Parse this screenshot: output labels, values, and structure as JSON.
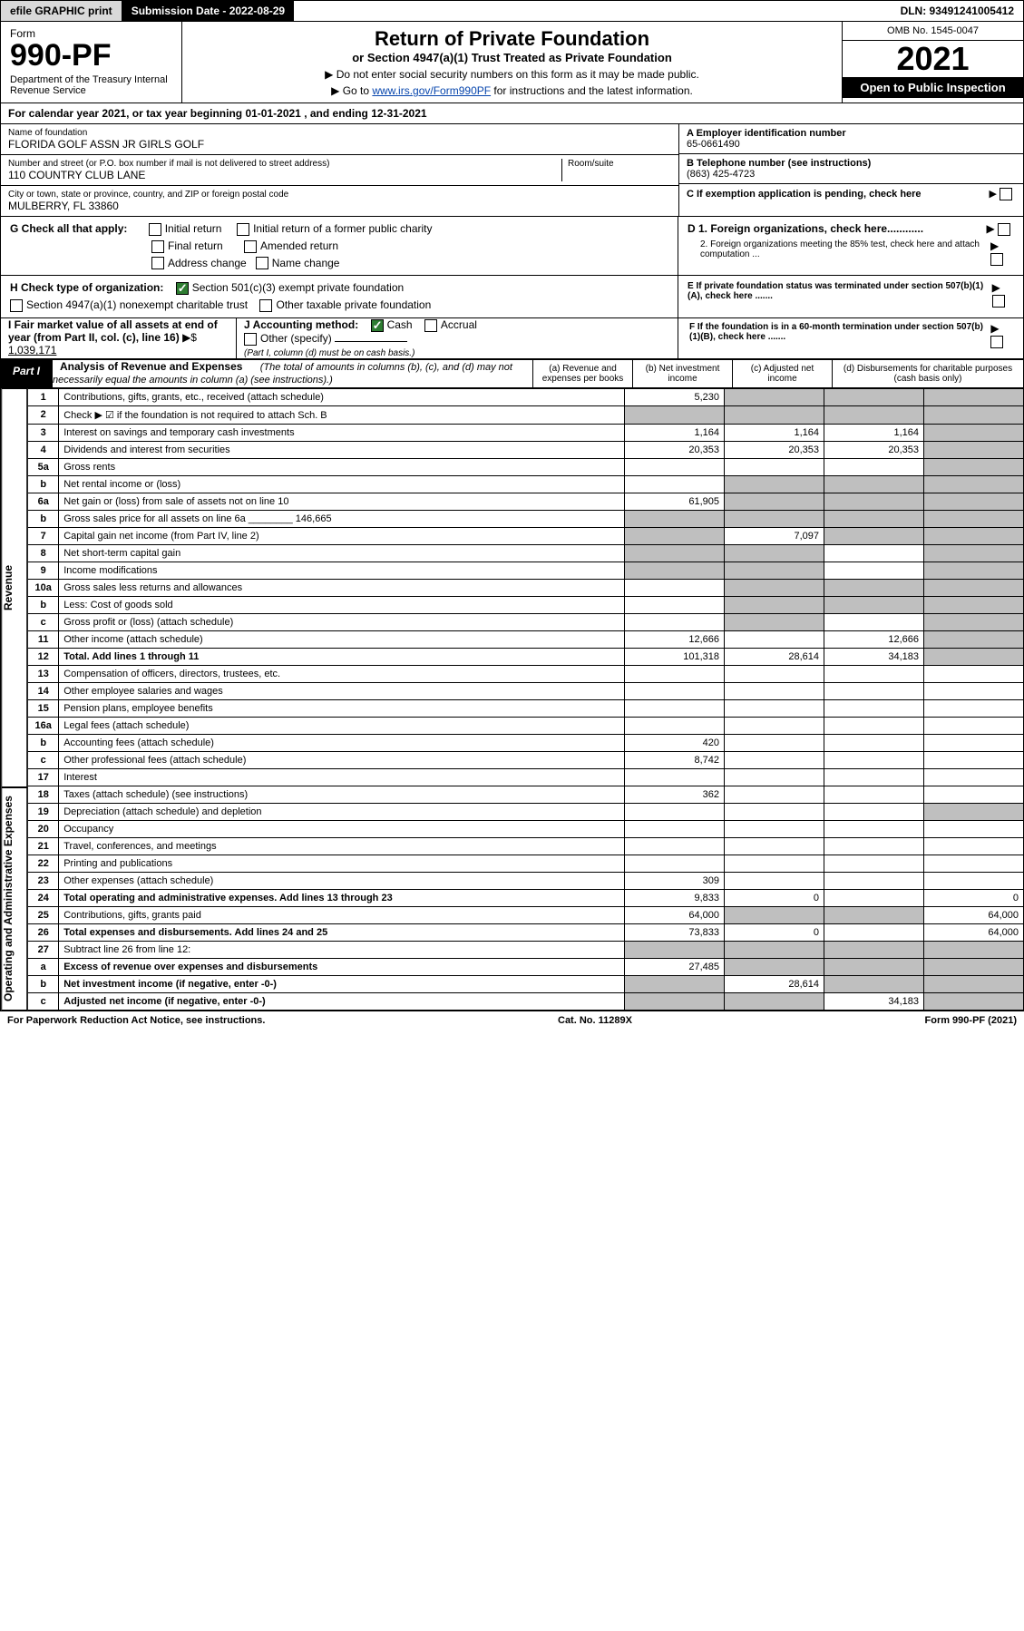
{
  "topbar": {
    "efile": "efile GRAPHIC print",
    "subdate_label": "Submission Date - 2022-08-29",
    "dln": "DLN: 93491241005412"
  },
  "header": {
    "form_label": "Form",
    "form_no": "990-PF",
    "dept": "Department of the Treasury\nInternal Revenue Service",
    "title1": "Return of Private Foundation",
    "title2": "or Section 4947(a)(1) Trust Treated as Private Foundation",
    "instr1": "▶ Do not enter social security numbers on this form as it may be made public.",
    "instr2_pre": "▶ Go to ",
    "instr2_link": "www.irs.gov/Form990PF",
    "instr2_post": " for instructions and the latest information.",
    "omb": "OMB No. 1545-0047",
    "taxyear": "2021",
    "open": "Open to Public Inspection"
  },
  "calendar": {
    "text_pre": "For calendar year 2021, or tax year beginning ",
    "begin": "01-01-2021",
    "text_mid": " , and ending ",
    "end": "12-31-2021"
  },
  "foundation": {
    "name_lbl": "Name of foundation",
    "name": "FLORIDA GOLF ASSN JR GIRLS GOLF",
    "addr_lbl": "Number and street (or P.O. box number if mail is not delivered to street address)",
    "addr": "110 COUNTRY CLUB LANE",
    "room_lbl": "Room/suite",
    "city_lbl": "City or town, state or province, country, and ZIP or foreign postal code",
    "city": "MULBERRY, FL  33860"
  },
  "right_ids": {
    "a_lbl": "A Employer identification number",
    "a_val": "65-0661490",
    "b_lbl": "B Telephone number (see instructions)",
    "b_val": "(863) 425-4723",
    "c_lbl": "C If exemption application is pending, check here",
    "d1": "D 1. Foreign organizations, check here............",
    "d2": "2. Foreign organizations meeting the 85% test, check here and attach computation ...",
    "e": "E  If private foundation status was terminated under section 507(b)(1)(A), check here .......",
    "f": "F  If the foundation is in a 60-month termination under section 507(b)(1)(B), check here ......."
  },
  "g": {
    "label": "G Check all that apply:",
    "opts": [
      "Initial return",
      "Final return",
      "Address change",
      "Initial return of a former public charity",
      "Amended return",
      "Name change"
    ]
  },
  "h": {
    "label": "H Check type of organization:",
    "opt1": "Section 501(c)(3) exempt private foundation",
    "opt2": "Section 4947(a)(1) nonexempt charitable trust",
    "opt3": "Other taxable private foundation"
  },
  "i": {
    "label": "I Fair market value of all assets at end of year (from Part II, col. (c), line 16)",
    "arrow": "▶$",
    "val": "1,039,171"
  },
  "j": {
    "label": "J Accounting method:",
    "cash": "Cash",
    "accrual": "Accrual",
    "other": "Other (specify)",
    "note": "(Part I, column (d) must be on cash basis.)"
  },
  "part1": {
    "tab": "Part I",
    "title": "Analysis of Revenue and Expenses",
    "sub": "(The total of amounts in columns (b), (c), and (d) may not necessarily equal the amounts in column (a) (see instructions).)",
    "col_a": "(a) Revenue and expenses per books",
    "col_b": "(b) Net investment income",
    "col_c": "(c) Adjusted net income",
    "col_d": "(d) Disbursements for charitable purposes (cash basis only)"
  },
  "side_labels": {
    "revenue": "Revenue",
    "expenses": "Operating and Administrative Expenses"
  },
  "rows": [
    {
      "sec": "rev",
      "n": "1",
      "desc": "Contributions, gifts, grants, etc., received (attach schedule)",
      "a": "5,230",
      "b": "",
      "c": "",
      "d": "",
      "shade_b": true,
      "shade_c": true,
      "shade_d": true
    },
    {
      "sec": "rev",
      "n": "2",
      "desc": "Check ▶ ☑ if the foundation is not required to attach Sch. B",
      "a": "",
      "b": "",
      "c": "",
      "d": "",
      "shade_a": true,
      "shade_b": true,
      "shade_c": true,
      "shade_d": true,
      "bold_not": true
    },
    {
      "sec": "rev",
      "n": "3",
      "desc": "Interest on savings and temporary cash investments",
      "a": "1,164",
      "b": "1,164",
      "c": "1,164",
      "d": "",
      "shade_d": true
    },
    {
      "sec": "rev",
      "n": "4",
      "desc": "Dividends and interest from securities",
      "a": "20,353",
      "b": "20,353",
      "c": "20,353",
      "d": "",
      "shade_d": true
    },
    {
      "sec": "rev",
      "n": "5a",
      "desc": "Gross rents",
      "a": "",
      "b": "",
      "c": "",
      "d": "",
      "shade_d": true
    },
    {
      "sec": "rev",
      "n": "b",
      "desc": "Net rental income or (loss)",
      "a": "",
      "b": "",
      "c": "",
      "d": "",
      "shade_b": true,
      "shade_c": true,
      "shade_d": true
    },
    {
      "sec": "rev",
      "n": "6a",
      "desc": "Net gain or (loss) from sale of assets not on line 10",
      "a": "61,905",
      "b": "",
      "c": "",
      "d": "",
      "shade_b": true,
      "shade_c": true,
      "shade_d": true
    },
    {
      "sec": "rev",
      "n": "b",
      "desc": "Gross sales price for all assets on line 6a ________ 146,665",
      "a": "",
      "b": "",
      "c": "",
      "d": "",
      "shade_a": true,
      "shade_b": true,
      "shade_c": true,
      "shade_d": true
    },
    {
      "sec": "rev",
      "n": "7",
      "desc": "Capital gain net income (from Part IV, line 2)",
      "a": "",
      "b": "7,097",
      "c": "",
      "d": "",
      "shade_a": true,
      "shade_c": true,
      "shade_d": true
    },
    {
      "sec": "rev",
      "n": "8",
      "desc": "Net short-term capital gain",
      "a": "",
      "b": "",
      "c": "",
      "d": "",
      "shade_a": true,
      "shade_b": true,
      "shade_d": true
    },
    {
      "sec": "rev",
      "n": "9",
      "desc": "Income modifications",
      "a": "",
      "b": "",
      "c": "",
      "d": "",
      "shade_a": true,
      "shade_b": true,
      "shade_d": true
    },
    {
      "sec": "rev",
      "n": "10a",
      "desc": "Gross sales less returns and allowances",
      "a": "",
      "b": "",
      "c": "",
      "d": "",
      "shade_b": true,
      "shade_c": true,
      "shade_d": true
    },
    {
      "sec": "rev",
      "n": "b",
      "desc": "Less: Cost of goods sold",
      "a": "",
      "b": "",
      "c": "",
      "d": "",
      "shade_b": true,
      "shade_c": true,
      "shade_d": true
    },
    {
      "sec": "rev",
      "n": "c",
      "desc": "Gross profit or (loss) (attach schedule)",
      "a": "",
      "b": "",
      "c": "",
      "d": "",
      "shade_b": true,
      "shade_d": true
    },
    {
      "sec": "rev",
      "n": "11",
      "desc": "Other income (attach schedule)",
      "a": "12,666",
      "b": "",
      "c": "12,666",
      "d": "",
      "shade_d": true
    },
    {
      "sec": "rev",
      "n": "12",
      "desc": "Total. Add lines 1 through 11",
      "a": "101,318",
      "b": "28,614",
      "c": "34,183",
      "d": "",
      "bold": true,
      "shade_d": true
    },
    {
      "sec": "exp",
      "n": "13",
      "desc": "Compensation of officers, directors, trustees, etc.",
      "a": "",
      "b": "",
      "c": "",
      "d": ""
    },
    {
      "sec": "exp",
      "n": "14",
      "desc": "Other employee salaries and wages",
      "a": "",
      "b": "",
      "c": "",
      "d": ""
    },
    {
      "sec": "exp",
      "n": "15",
      "desc": "Pension plans, employee benefits",
      "a": "",
      "b": "",
      "c": "",
      "d": ""
    },
    {
      "sec": "exp",
      "n": "16a",
      "desc": "Legal fees (attach schedule)",
      "a": "",
      "b": "",
      "c": "",
      "d": ""
    },
    {
      "sec": "exp",
      "n": "b",
      "desc": "Accounting fees (attach schedule)",
      "a": "420",
      "b": "",
      "c": "",
      "d": ""
    },
    {
      "sec": "exp",
      "n": "c",
      "desc": "Other professional fees (attach schedule)",
      "a": "8,742",
      "b": "",
      "c": "",
      "d": ""
    },
    {
      "sec": "exp",
      "n": "17",
      "desc": "Interest",
      "a": "",
      "b": "",
      "c": "",
      "d": ""
    },
    {
      "sec": "exp",
      "n": "18",
      "desc": "Taxes (attach schedule) (see instructions)",
      "a": "362",
      "b": "",
      "c": "",
      "d": ""
    },
    {
      "sec": "exp",
      "n": "19",
      "desc": "Depreciation (attach schedule) and depletion",
      "a": "",
      "b": "",
      "c": "",
      "d": "",
      "shade_d": true
    },
    {
      "sec": "exp",
      "n": "20",
      "desc": "Occupancy",
      "a": "",
      "b": "",
      "c": "",
      "d": ""
    },
    {
      "sec": "exp",
      "n": "21",
      "desc": "Travel, conferences, and meetings",
      "a": "",
      "b": "",
      "c": "",
      "d": ""
    },
    {
      "sec": "exp",
      "n": "22",
      "desc": "Printing and publications",
      "a": "",
      "b": "",
      "c": "",
      "d": ""
    },
    {
      "sec": "exp",
      "n": "23",
      "desc": "Other expenses (attach schedule)",
      "a": "309",
      "b": "",
      "c": "",
      "d": ""
    },
    {
      "sec": "exp",
      "n": "24",
      "desc": "Total operating and administrative expenses. Add lines 13 through 23",
      "a": "9,833",
      "b": "0",
      "c": "",
      "d": "0",
      "bold": true
    },
    {
      "sec": "exp",
      "n": "25",
      "desc": "Contributions, gifts, grants paid",
      "a": "64,000",
      "b": "",
      "c": "",
      "d": "64,000",
      "shade_b": true,
      "shade_c": true
    },
    {
      "sec": "exp",
      "n": "26",
      "desc": "Total expenses and disbursements. Add lines 24 and 25",
      "a": "73,833",
      "b": "0",
      "c": "",
      "d": "64,000",
      "bold": true
    },
    {
      "sec": "exp",
      "n": "27",
      "desc": "Subtract line 26 from line 12:",
      "a": "",
      "b": "",
      "c": "",
      "d": "",
      "shade_a": true,
      "shade_b": true,
      "shade_c": true,
      "shade_d": true
    },
    {
      "sec": "exp",
      "n": "a",
      "desc": "Excess of revenue over expenses and disbursements",
      "a": "27,485",
      "b": "",
      "c": "",
      "d": "",
      "bold": true,
      "shade_b": true,
      "shade_c": true,
      "shade_d": true
    },
    {
      "sec": "exp",
      "n": "b",
      "desc": "Net investment income (if negative, enter -0-)",
      "a": "",
      "b": "28,614",
      "c": "",
      "d": "",
      "bold": true,
      "shade_a": true,
      "shade_c": true,
      "shade_d": true
    },
    {
      "sec": "exp",
      "n": "c",
      "desc": "Adjusted net income (if negative, enter -0-)",
      "a": "",
      "b": "",
      "c": "34,183",
      "d": "",
      "bold": true,
      "shade_a": true,
      "shade_b": true,
      "shade_d": true
    }
  ],
  "footer": {
    "left": "For Paperwork Reduction Act Notice, see instructions.",
    "mid": "Cat. No. 11289X",
    "right": "Form 990-PF (2021)"
  }
}
